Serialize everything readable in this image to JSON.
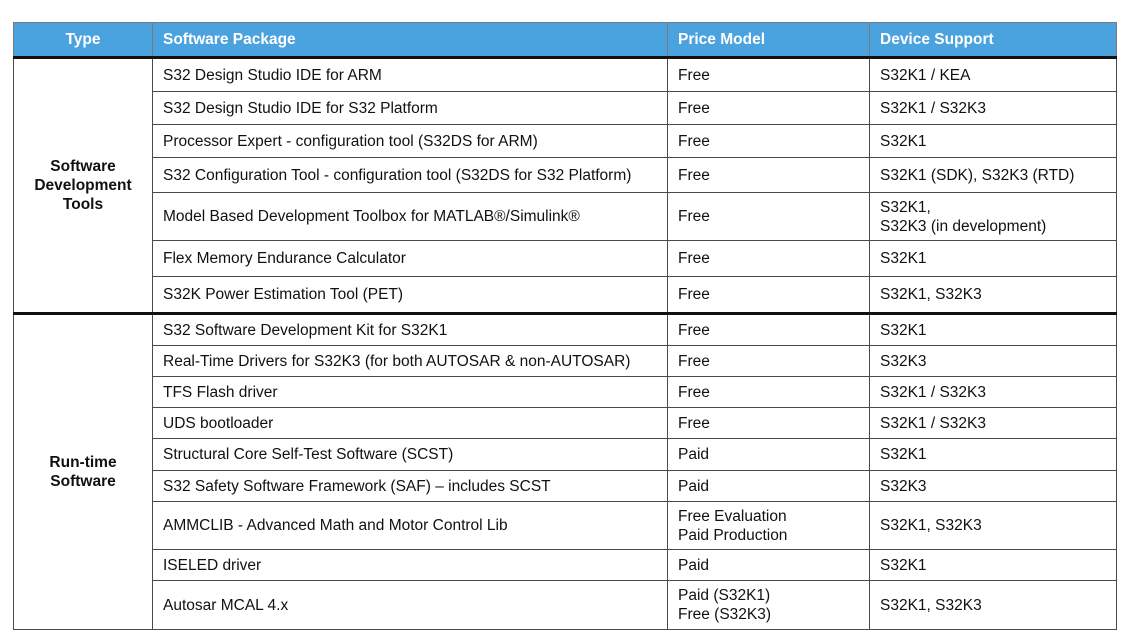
{
  "header": {
    "type": "Type",
    "package": "Software Package",
    "price": "Price Model",
    "support": "Device Support"
  },
  "sections": [
    {
      "type_lines": [
        "Software",
        "Development",
        "Tools"
      ],
      "rows": [
        {
          "package": "S32 Design Studio IDE for ARM",
          "price": [
            "Free"
          ],
          "support": [
            "S32K1 / KEA"
          ]
        },
        {
          "package": "S32 Design Studio IDE for S32 Platform",
          "price": [
            "Free"
          ],
          "support": [
            "S32K1 / S32K3"
          ]
        },
        {
          "package": "Processor Expert - configuration tool (S32DS for ARM)",
          "price": [
            "Free"
          ],
          "support": [
            "S32K1"
          ]
        },
        {
          "package": "S32 Configuration Tool - configuration tool (S32DS for S32 Platform)",
          "price": [
            "Free"
          ],
          "support": [
            "S32K1 (SDK), S32K3 (RTD)"
          ]
        },
        {
          "package": "Model Based Development Toolbox for MATLAB®/Simulink®",
          "price": [
            "Free"
          ],
          "support": [
            "S32K1,",
            "S32K3 (in development)"
          ]
        },
        {
          "package": "Flex Memory Endurance Calculator",
          "price": [
            "Free"
          ],
          "support": [
            "S32K1"
          ]
        },
        {
          "package": "S32K Power Estimation Tool (PET)",
          "price": [
            "Free"
          ],
          "support": [
            "S32K1, S32K3"
          ]
        }
      ]
    },
    {
      "type_lines": [
        "Run-time",
        "Software"
      ],
      "rows": [
        {
          "package": "S32 Software Development Kit for S32K1",
          "price": [
            "Free"
          ],
          "support": [
            "S32K1"
          ]
        },
        {
          "package": "Real-Time Drivers for S32K3 (for both AUTOSAR & non-AUTOSAR)",
          "price": [
            "Free"
          ],
          "support": [
            "S32K3"
          ]
        },
        {
          "package": "TFS Flash driver",
          "price": [
            "Free"
          ],
          "support": [
            "S32K1 / S32K3"
          ]
        },
        {
          "package": "UDS bootloader",
          "price": [
            "Free"
          ],
          "support": [
            "S32K1 / S32K3"
          ]
        },
        {
          "package": "Structural Core Self-Test Software (SCST)",
          "price": [
            "Paid"
          ],
          "support": [
            "S32K1"
          ]
        },
        {
          "package": "S32 Safety Software Framework (SAF) – includes SCST",
          "price": [
            "Paid"
          ],
          "support": [
            "S32K3"
          ]
        },
        {
          "package": "AMMCLIB - Advanced Math and Motor Control Lib",
          "price": [
            "Free Evaluation",
            "Paid Production"
          ],
          "support": [
            "S32K1, S32K3"
          ]
        },
        {
          "package": "ISELED driver",
          "price": [
            "Paid"
          ],
          "support": [
            "S32K1"
          ]
        },
        {
          "package": "Autosar MCAL 4.x",
          "price": [
            "Paid (S32K1)",
            "Free (S32K3)"
          ],
          "support": [
            "S32K1, S32K3"
          ]
        }
      ]
    }
  ]
}
